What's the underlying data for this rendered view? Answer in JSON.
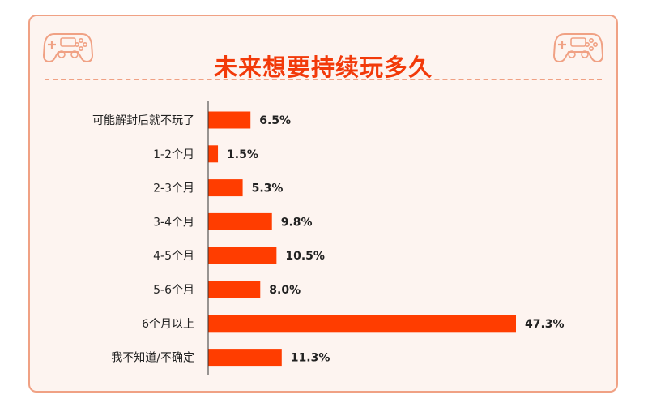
{
  "header": {
    "title": "未来想要持续玩多久"
  },
  "icons": {
    "left": "gamepad-icon",
    "right": "gamepad-icon"
  },
  "colors": {
    "bar": "#ff3d00",
    "title": "#f23a0a",
    "border": "#f0a184",
    "background": "#fdf4f0"
  },
  "chart_data": {
    "type": "bar",
    "orientation": "horizontal",
    "categories": [
      "可能解封后就不玩了",
      "1-2个月",
      "2-3个月",
      "3-4个月",
      "4-5个月",
      "5-6个月",
      "6个月以上",
      "我不知道/不确定"
    ],
    "values": [
      6.5,
      1.5,
      5.3,
      9.8,
      10.5,
      8.0,
      47.3,
      11.3
    ],
    "value_labels": [
      "6.5%",
      "1.5%",
      "5.3%",
      "9.8%",
      "10.5%",
      "8.0%",
      "47.3%",
      "11.3%"
    ],
    "unit": "%",
    "grid": false,
    "legend": "none"
  }
}
